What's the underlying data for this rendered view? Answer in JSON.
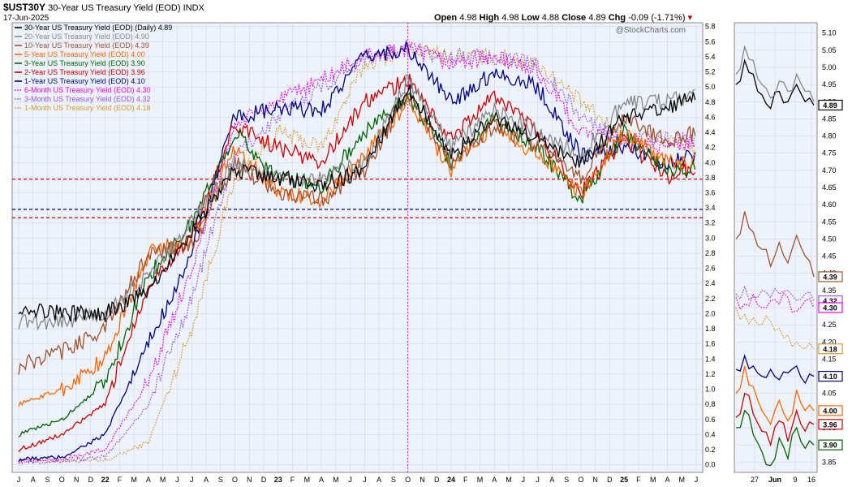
{
  "header": {
    "symbol": "$UST30Y",
    "name": "30-Year US Treasury Yield (EOD)",
    "exchange": "INDX",
    "date": "17-Jun-2025",
    "ohlc": {
      "open_label": "Open",
      "open": "4.98",
      "high_label": "High",
      "high": "4.98",
      "low_label": "Low",
      "low": "4.88",
      "close_label": "Close",
      "close": "4.89",
      "chg_label": "Chg",
      "chg": "-0.09 (-1.71%)"
    },
    "watermark": "@StockCharts.com"
  },
  "chart_data": [
    {
      "type": "line",
      "title": "",
      "xlabel": "",
      "ylabel": "",
      "y_axis_side": "right",
      "ylim": [
        -0.1,
        5.85
      ],
      "yticks": [
        "5.8",
        "5.6",
        "5.4",
        "5.2",
        "5.0",
        "4.8",
        "4.6",
        "4.4",
        "4.2",
        "4.0",
        "3.8",
        "3.6",
        "3.4",
        "3.2",
        "3.0",
        "2.8",
        "2.6",
        "2.4",
        "2.2",
        "2.0",
        "1.8",
        "1.6",
        "1.4",
        "1.2",
        "1.0",
        "0.8",
        "0.6",
        "0.4",
        "0.2",
        "0.0"
      ],
      "xtick_labels": [
        "J",
        "A",
        "S",
        "O",
        "N",
        "D",
        "22",
        "F",
        "M",
        "A",
        "M",
        "J",
        "J",
        "A",
        "S",
        "O",
        "N",
        "D",
        "23",
        "F",
        "M",
        "A",
        "M",
        "J",
        "J",
        "A",
        "S",
        "O",
        "N",
        "D",
        "24",
        "F",
        "M",
        "A",
        "M",
        "J",
        "J",
        "A",
        "S",
        "O",
        "N",
        "D",
        "25",
        "F",
        "M",
        "A",
        "M",
        "J"
      ],
      "grid": true,
      "legend_position": "top-left",
      "x": [
        "2021-07",
        "2021-10",
        "2022-01",
        "2022-04",
        "2022-07",
        "2022-10",
        "2023-01",
        "2023-04",
        "2023-07",
        "2023-10",
        "2024-01",
        "2024-04",
        "2024-07",
        "2024-10",
        "2025-01",
        "2025-04",
        "2025-06"
      ],
      "series": [
        {
          "name": "30-Year US Treasury Yield (EOD) (Daily) 4.89",
          "color": "#000000",
          "style": "solid",
          "values": [
            2.1,
            2.0,
            2.0,
            2.3,
            3.1,
            3.9,
            3.8,
            3.7,
            3.9,
            5.0,
            4.1,
            4.6,
            4.3,
            4.0,
            4.6,
            4.7,
            4.89
          ]
        },
        {
          "name": "20-Year US Treasury Yield (EOD) 4.90",
          "color": "#888888",
          "style": "solid",
          "values": [
            1.9,
            1.9,
            2.0,
            2.5,
            3.2,
            4.0,
            3.8,
            3.8,
            4.0,
            5.1,
            4.2,
            4.7,
            4.4,
            4.1,
            4.8,
            4.8,
            4.9
          ]
        },
        {
          "name": "10-Year US Treasury Yield (EOD) 4.39",
          "color": "#a0522d",
          "style": "solid",
          "values": [
            1.3,
            1.5,
            1.8,
            2.8,
            2.9,
            4.0,
            3.6,
            3.5,
            3.9,
            4.9,
            4.0,
            4.5,
            4.2,
            3.8,
            4.6,
            4.3,
            4.39
          ]
        },
        {
          "name": "5-Year US Treasury Yield (EOD) 4.00",
          "color": "#ff6600",
          "style": "solid",
          "values": [
            0.8,
            1.0,
            1.4,
            2.8,
            3.0,
            4.2,
            3.6,
            3.5,
            4.1,
            4.8,
            3.9,
            4.5,
            4.1,
            3.6,
            4.4,
            4.0,
            4.0
          ]
        },
        {
          "name": "3-Year US Treasury Yield (EOD) 3.90",
          "color": "#006400",
          "style": "solid",
          "values": [
            0.4,
            0.6,
            1.1,
            2.5,
            3.2,
            4.4,
            3.8,
            3.7,
            4.4,
            4.9,
            4.0,
            4.6,
            4.2,
            3.5,
            4.4,
            3.9,
            3.9
          ]
        },
        {
          "name": "2-Year US Treasury Yield (EOD) 3.96",
          "color": "#cc0000",
          "style": "solid",
          "values": [
            0.2,
            0.4,
            0.8,
            2.4,
            3.0,
            4.5,
            4.2,
            4.0,
            4.8,
            5.1,
            4.3,
            4.9,
            4.4,
            3.6,
            4.3,
            3.8,
            3.96
          ]
        },
        {
          "name": "1-Year US Treasury Yield (EOD) 4.10",
          "color": "#000080",
          "style": "solid",
          "values": [
            0.07,
            0.1,
            0.4,
            1.6,
            2.8,
            4.6,
            4.7,
            4.7,
            5.4,
            5.5,
            4.8,
            5.2,
            5.0,
            4.1,
            4.2,
            4.0,
            4.1
          ]
        },
        {
          "name": "6-Month US Treasury Yield (EOD) 4.30",
          "color": "#ee00ee",
          "style": "dotted",
          "values": [
            0.05,
            0.07,
            0.2,
            1.1,
            2.6,
            4.5,
            4.8,
            5.1,
            5.4,
            5.5,
            5.3,
            5.4,
            5.2,
            4.4,
            4.3,
            4.2,
            4.3
          ]
        },
        {
          "name": "3-Month US Treasury Yield (EOD) 4.32",
          "color": "#9955ee",
          "style": "dotted",
          "values": [
            0.05,
            0.05,
            0.1,
            0.8,
            2.2,
            4.1,
            4.6,
            5.0,
            5.4,
            5.5,
            5.4,
            5.4,
            5.3,
            4.6,
            4.3,
            4.3,
            4.32
          ]
        },
        {
          "name": "1-Month US Treasury Yield (EOD) 4.18",
          "color": "#d49a33",
          "style": "dotted",
          "values": [
            0.05,
            0.05,
            0.05,
            0.3,
            1.8,
            3.8,
            4.4,
            4.2,
            5.3,
            5.5,
            5.4,
            5.4,
            5.3,
            4.8,
            4.3,
            4.3,
            4.18
          ]
        }
      ],
      "reference_lines": [
        {
          "value": 3.78,
          "color": "#dd0000",
          "style": "dashed"
        },
        {
          "value": 3.38,
          "color": "#000080",
          "style": "dashed"
        },
        {
          "value": 3.27,
          "color": "#dd0000",
          "style": "dashed"
        },
        {
          "axis": "x",
          "value": "2023-10",
          "color": "#ee00ee",
          "style": "dotted"
        }
      ]
    },
    {
      "type": "line",
      "title": "",
      "y_axis_side": "right",
      "ylim": [
        3.82,
        5.13
      ],
      "yticks": [
        "5.10",
        "5.05",
        "5.00",
        "4.95",
        "4.90",
        "4.85",
        "4.80",
        "4.75",
        "4.70",
        "4.65",
        "4.60",
        "4.55",
        "4.50",
        "4.45",
        "4.40",
        "4.35",
        "4.30",
        "4.25",
        "4.20",
        "4.15",
        "4.10",
        "4.05",
        "4.00",
        "3.95",
        "3.90",
        "3.85"
      ],
      "xtick_labels": [
        "27",
        "Jun",
        "9",
        "16"
      ],
      "grid": true,
      "last_value_labels": [
        "4.89",
        "4.39",
        "4.32",
        "4.30",
        "4.18",
        "4.10",
        "4.00",
        "3.96",
        "3.90"
      ],
      "series": [
        {
          "name": "30Y",
          "color": "#000000",
          "values": [
            4.95,
            5.02,
            4.98,
            4.92,
            4.88,
            4.93,
            4.9,
            4.95,
            4.9,
            4.89
          ]
        },
        {
          "name": "20Y",
          "color": "#888888",
          "values": [
            4.98,
            5.06,
            5.02,
            4.95,
            4.91,
            4.96,
            4.93,
            4.98,
            4.93,
            4.9
          ]
        },
        {
          "name": "10Y",
          "color": "#a0522d",
          "values": [
            4.5,
            4.58,
            4.52,
            4.47,
            4.42,
            4.49,
            4.43,
            4.51,
            4.45,
            4.39
          ]
        },
        {
          "name": "6M",
          "color": "#ee00ee",
          "values": [
            4.33,
            4.31,
            4.34,
            4.3,
            4.32,
            4.31,
            4.33,
            4.29,
            4.32,
            4.3
          ]
        },
        {
          "name": "3M",
          "color": "#9955ee",
          "values": [
            4.34,
            4.36,
            4.33,
            4.35,
            4.33,
            4.34,
            4.35,
            4.32,
            4.34,
            4.32
          ]
        },
        {
          "name": "1M",
          "color": "#d49a33",
          "values": [
            4.3,
            4.28,
            4.27,
            4.25,
            4.26,
            4.24,
            4.22,
            4.2,
            4.18,
            4.18
          ]
        },
        {
          "name": "1Y",
          "color": "#000080",
          "values": [
            4.12,
            4.16,
            4.13,
            4.1,
            4.12,
            4.09,
            4.11,
            4.13,
            4.08,
            4.1
          ]
        },
        {
          "name": "5Y",
          "color": "#ff6600",
          "values": [
            4.05,
            4.13,
            4.07,
            4.0,
            3.96,
            4.03,
            3.97,
            4.06,
            4.0,
            4.0
          ]
        },
        {
          "name": "2Y",
          "color": "#cc0000",
          "values": [
            3.98,
            4.05,
            3.99,
            3.94,
            3.9,
            3.97,
            3.91,
            4.0,
            3.94,
            3.96
          ]
        },
        {
          "name": "3Y",
          "color": "#006400",
          "values": [
            3.95,
            4.0,
            3.93,
            3.88,
            3.84,
            3.92,
            3.86,
            3.95,
            3.89,
            3.9
          ]
        }
      ]
    }
  ]
}
